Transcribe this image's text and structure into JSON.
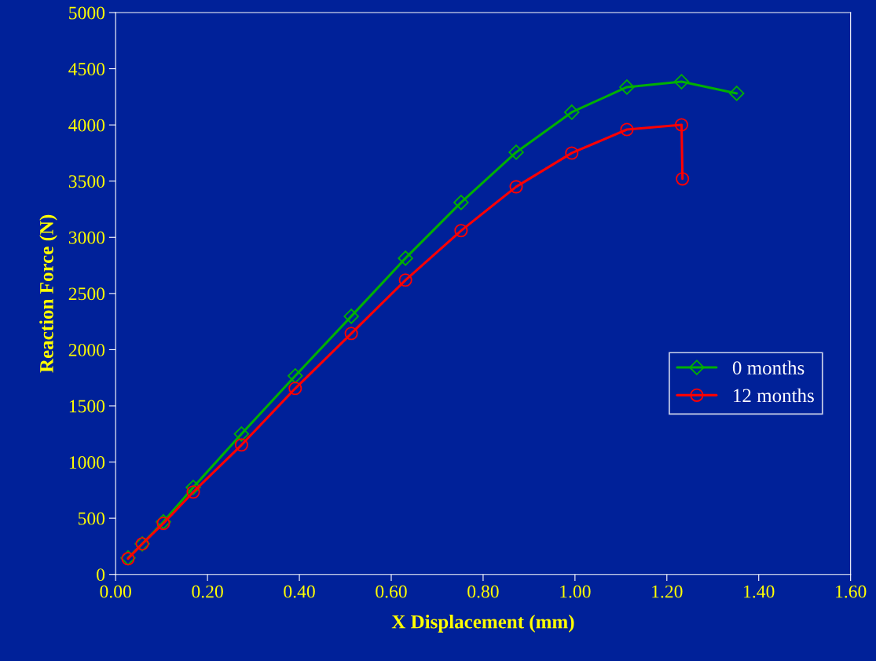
{
  "chart_data": {
    "type": "line",
    "xlabel": "X Displacement (mm)",
    "ylabel": "Reaction Force (N)",
    "xlim": [
      0,
      1.6
    ],
    "xticks": [
      {
        "value": 0,
        "label": "0.00"
      },
      {
        "value": 0.2,
        "label": "0.20"
      },
      {
        "value": 0.4,
        "label": "0.40"
      },
      {
        "value": 0.6,
        "label": "0.60"
      },
      {
        "value": 0.8,
        "label": "0.80"
      },
      {
        "value": 1.0,
        "label": "1.00"
      },
      {
        "value": 1.2,
        "label": "1.20"
      },
      {
        "value": 1.4,
        "label": "1.40"
      },
      {
        "value": 1.6,
        "label": "1.60"
      }
    ],
    "ylim": [
      0,
      5000
    ],
    "yticks": [
      0,
      500,
      1000,
      1500,
      2000,
      2500,
      3000,
      3500,
      4000,
      4500,
      5000
    ],
    "grid": false,
    "legend": "right",
    "line_style": "solid",
    "series": [
      {
        "name": "0 months",
        "color": "#00b000",
        "marker": "diamond",
        "x": [
          0.027,
          0.058,
          0.104,
          0.169,
          0.274,
          0.391,
          0.513,
          0.631,
          0.752,
          0.872,
          0.993,
          1.113,
          1.232,
          1.352
        ],
        "values": [
          147,
          272,
          468,
          775,
          1250,
          1767,
          2297,
          2814,
          3310,
          3757,
          4113,
          4337,
          4385,
          4281
        ]
      },
      {
        "name": "12 months",
        "color": "#ff0000",
        "marker": "circle",
        "x": [
          0.027,
          0.058,
          0.104,
          0.169,
          0.274,
          0.391,
          0.513,
          0.631,
          0.752,
          0.872,
          0.993,
          1.113,
          1.232,
          1.234
        ],
        "values": [
          140,
          272,
          454,
          733,
          1152,
          1655,
          2144,
          2619,
          3059,
          3450,
          3750,
          3959,
          4001,
          3520
        ]
      }
    ]
  }
}
